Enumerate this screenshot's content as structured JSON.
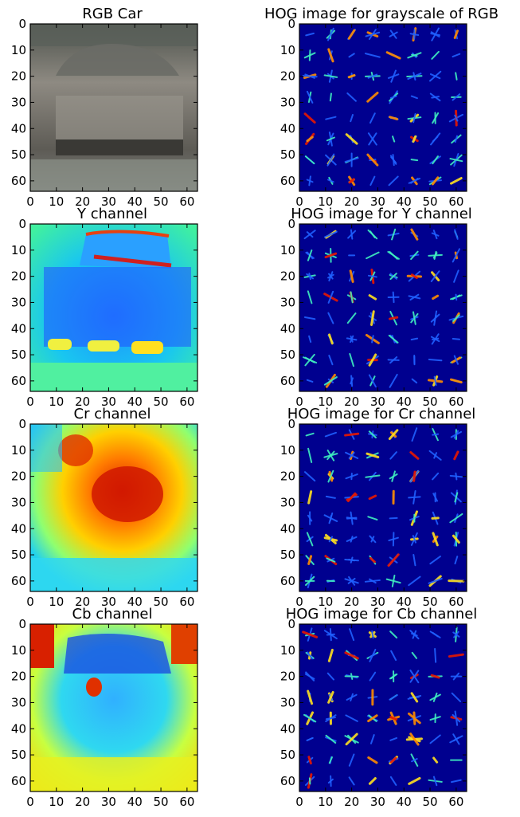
{
  "figure": {
    "colors": {
      "frame": "#000000",
      "hog_bg": "#00008f",
      "background": "#ffffff"
    },
    "colormap": "jet",
    "shared_axis": {
      "xticks": [
        "0",
        "10",
        "20",
        "30",
        "40",
        "50",
        "60"
      ],
      "yticks": [
        "0",
        "10",
        "20",
        "30",
        "40",
        "50",
        "60"
      ],
      "xlim": [
        0,
        64
      ],
      "ylim": [
        64,
        0
      ]
    },
    "panels": [
      {
        "title": "RGB Car",
        "kind": "photo"
      },
      {
        "title": "HOG image for grayscale of RGB",
        "kind": "hog"
      },
      {
        "title": "Y channel",
        "kind": "heatmap"
      },
      {
        "title": "HOG image for Y channel",
        "kind": "hog"
      },
      {
        "title": "Cr channel",
        "kind": "heatmap"
      },
      {
        "title": "HOG image for Cr channel",
        "kind": "hog"
      },
      {
        "title": "Cb channel",
        "kind": "heatmap"
      },
      {
        "title": "HOG image for Cb channel",
        "kind": "hog"
      }
    ]
  },
  "chart_data": [
    {
      "type": "heatmap",
      "title": "RGB Car",
      "xlim": [
        0,
        64
      ],
      "ylim": [
        64,
        0
      ],
      "x_ticks": [
        0,
        10,
        20,
        30,
        40,
        50,
        60
      ],
      "y_ticks": [
        0,
        10,
        20,
        30,
        40,
        50,
        60
      ]
    },
    {
      "type": "heatmap",
      "title": "HOG image for grayscale of RGB",
      "xlim": [
        0,
        64
      ],
      "ylim": [
        64,
        0
      ],
      "x_ticks": [
        0,
        10,
        20,
        30,
        40,
        50,
        60
      ],
      "y_ticks": [
        0,
        10,
        20,
        30,
        40,
        50,
        60
      ]
    },
    {
      "type": "heatmap",
      "title": "Y channel",
      "xlim": [
        0,
        64
      ],
      "ylim": [
        64,
        0
      ],
      "x_ticks": [
        0,
        10,
        20,
        30,
        40,
        50,
        60
      ],
      "y_ticks": [
        0,
        10,
        20,
        30,
        40,
        50,
        60
      ]
    },
    {
      "type": "heatmap",
      "title": "HOG image for Y channel",
      "xlim": [
        0,
        64
      ],
      "ylim": [
        64,
        0
      ],
      "x_ticks": [
        0,
        10,
        20,
        30,
        40,
        50,
        60
      ],
      "y_ticks": [
        0,
        10,
        20,
        30,
        40,
        50,
        60
      ]
    },
    {
      "type": "heatmap",
      "title": "Cr channel",
      "xlim": [
        0,
        64
      ],
      "ylim": [
        64,
        0
      ],
      "x_ticks": [
        0,
        10,
        20,
        30,
        40,
        50,
        60
      ],
      "y_ticks": [
        0,
        10,
        20,
        30,
        40,
        50,
        60
      ]
    },
    {
      "type": "heatmap",
      "title": "HOG image for Cr channel",
      "xlim": [
        0,
        64
      ],
      "ylim": [
        64,
        0
      ],
      "x_ticks": [
        0,
        10,
        20,
        30,
        40,
        50,
        60
      ],
      "y_ticks": [
        0,
        10,
        20,
        30,
        40,
        50,
        60
      ]
    },
    {
      "type": "heatmap",
      "title": "Cb channel",
      "xlim": [
        0,
        64
      ],
      "ylim": [
        64,
        0
      ],
      "x_ticks": [
        0,
        10,
        20,
        30,
        40,
        50,
        60
      ],
      "y_ticks": [
        0,
        10,
        20,
        30,
        40,
        50,
        60
      ]
    },
    {
      "type": "heatmap",
      "title": "HOG image for Cb channel",
      "xlim": [
        0,
        64
      ],
      "ylim": [
        64,
        0
      ],
      "x_ticks": [
        0,
        10,
        20,
        30,
        40,
        50,
        60
      ],
      "y_ticks": [
        0,
        10,
        20,
        30,
        40,
        50,
        60
      ]
    }
  ]
}
